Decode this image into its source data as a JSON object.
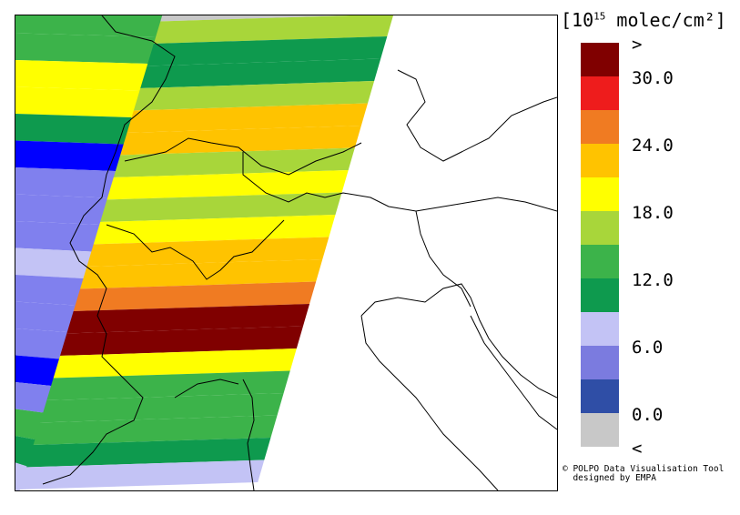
{
  "legend": {
    "title_prefix": "[10",
    "title_exp": "15",
    "title_suffix": " molec/cm²]",
    "bins": [
      {
        "label": ">",
        "color": "#800000"
      },
      {
        "label": "30.0",
        "color": "#ee1c1c"
      },
      {
        "label": "",
        "color": "#f07b22"
      },
      {
        "label": "24.0",
        "color": "#ffc300"
      },
      {
        "label": "",
        "color": "#ffff00"
      },
      {
        "label": "18.0",
        "color": "#a8d63a"
      },
      {
        "label": "",
        "color": "#3cb34a"
      },
      {
        "label": "12.0",
        "color": "#0e9a4e"
      },
      {
        "label": "",
        "color": "#c3c3f5"
      },
      {
        "label": "6.0",
        "color": "#7b7bdf"
      },
      {
        "label": "",
        "color": "#2f4ea6"
      },
      {
        "label": "0.0",
        "color": "#c8c8c8"
      },
      {
        "label": "<",
        "color": null
      }
    ]
  },
  "credit": {
    "line1": "© POLPO Data Visualisation Tool",
    "line2": "  designed by EMPA"
  },
  "map": {
    "colors": {
      "darkred": "#800000",
      "red": "#ee1c1c",
      "orange": "#f07b22",
      "amber": "#ffc300",
      "yellow": "#ffff00",
      "lime": "#a8d63a",
      "green": "#3cb34a",
      "darkgreen": "#0e9a4e",
      "lavender": "#c3c3f5",
      "periwinkle": "#8080ee",
      "blue": "#0000ff",
      "gray": "#c8c8c8"
    },
    "swath_right": [
      {
        "c": "gray"
      },
      {
        "c": "lime"
      },
      {
        "c": "darkgreen"
      },
      {
        "c": "darkgreen"
      },
      {
        "c": "lime"
      },
      {
        "c": "amber"
      },
      {
        "c": "amber"
      },
      {
        "c": "lime"
      },
      {
        "c": "yellow"
      },
      {
        "c": "lime"
      },
      {
        "c": "yellow"
      },
      {
        "c": "amber"
      },
      {
        "c": "amber"
      },
      {
        "c": "orange"
      },
      {
        "c": "darkred"
      },
      {
        "c": "darkred"
      },
      {
        "c": "yellow"
      },
      {
        "c": "green"
      },
      {
        "c": "green"
      },
      {
        "c": "green"
      },
      {
        "c": "darkgreen"
      },
      {
        "c": "lavender"
      }
    ],
    "swath_left": [
      {
        "c": "green"
      },
      {
        "c": "green"
      },
      {
        "c": "yellow"
      },
      {
        "c": "yellow"
      },
      {
        "c": "darkgreen"
      },
      {
        "c": "blue"
      },
      {
        "c": "periwinkle"
      },
      {
        "c": "periwinkle"
      },
      {
        "c": "periwinkle"
      },
      {
        "c": "lavender"
      },
      {
        "c": "periwinkle"
      },
      {
        "c": "periwinkle"
      },
      {
        "c": "periwinkle"
      },
      {
        "c": "blue"
      },
      {
        "c": "periwinkle"
      },
      {
        "c": "green"
      },
      {
        "c": "darkgreen"
      },
      {
        "c": "lavender"
      }
    ]
  }
}
